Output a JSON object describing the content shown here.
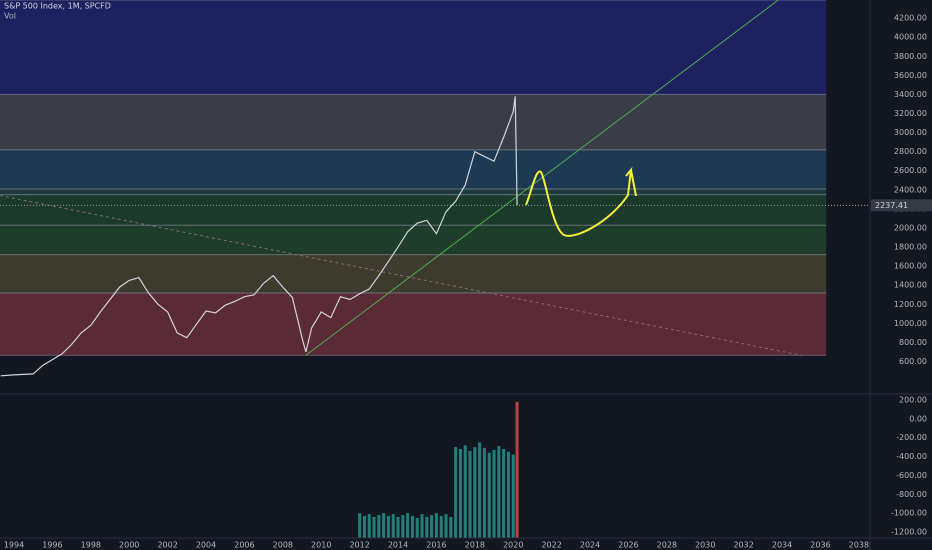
{
  "chart_data": [
    {
      "type": "line",
      "title": "S&P 500 Index, 1M, SPCFD",
      "xlim": [
        1993.27,
        2038.58
      ],
      "ylim": [
        270,
        4390
      ],
      "yticks": [
        {
          "value": 600,
          "label": "600.00"
        },
        {
          "value": 800,
          "label": "800.00"
        },
        {
          "value": 1000,
          "label": "1000.00"
        },
        {
          "value": 1200,
          "label": "1200.00"
        },
        {
          "value": 1400,
          "label": "1400.00"
        },
        {
          "value": 1600,
          "label": "1600.00"
        },
        {
          "value": 1800,
          "label": "1800.00"
        },
        {
          "value": 2000,
          "label": "2000.00"
        },
        {
          "value": 2200,
          "label": "2200.00"
        },
        {
          "value": 2400,
          "label": "2400.00"
        },
        {
          "value": 2600,
          "label": "2600.00"
        },
        {
          "value": 2800,
          "label": "2800.00"
        },
        {
          "value": 3000,
          "label": "3000.00"
        },
        {
          "value": 3200,
          "label": "3200.00"
        },
        {
          "value": 3400,
          "label": "3400.00"
        },
        {
          "value": 3600,
          "label": "3600.00"
        },
        {
          "value": 3800,
          "label": "3800.00"
        },
        {
          "value": 4000,
          "label": "4000.00"
        },
        {
          "value": 4200,
          "label": "4200.00"
        }
      ],
      "last_price": 2237.41,
      "bands_end_x": 2036.3,
      "bands": [
        {
          "from": 665,
          "to": 1320,
          "color": "#5a2a36"
        },
        {
          "from": 1320,
          "to": 1720,
          "color": "#3d3b2e"
        },
        {
          "from": 1720,
          "to": 2030,
          "color": "#1f3d2b"
        },
        {
          "from": 2030,
          "to": 2350,
          "color": "#1c3a2c"
        },
        {
          "from": 2350,
          "to": 2410,
          "color": "#1d3a3d"
        },
        {
          "from": 2410,
          "to": 2820,
          "color": "#1e3a52"
        },
        {
          "from": 2820,
          "to": 3400,
          "color": "#3a3d47"
        },
        {
          "from": 3400,
          "to": 4390,
          "color": "#1d2160"
        }
      ],
      "trendlines": [
        {
          "x": [
            2009.2,
            2033.8
          ],
          "y": [
            666,
            4390
          ],
          "color": "#4caf50",
          "dashed": false
        },
        {
          "x": [
            1993.27,
            2035.0
          ],
          "y": [
            2340,
            665
          ],
          "color": "#8a6a78",
          "dashed": true
        }
      ],
      "series": [
        {
          "name": "Vol",
          "color": "#d1d4dc",
          "x": [
            1993.3,
            1994,
            1995,
            1995.5,
            1996,
            1996.5,
            1997,
            1997.5,
            1998,
            1998.5,
            1999,
            1999.5,
            2000,
            2000.5,
            2001,
            2001.5,
            2002,
            2002.5,
            2003,
            2003.5,
            2004,
            2004.5,
            2005,
            2005.5,
            2006,
            2006.5,
            2007,
            2007.5,
            2008,
            2008.5,
            2009,
            2009.2,
            2009.5,
            2010,
            2010.5,
            2011,
            2011.5,
            2012,
            2012.5,
            2013,
            2013.5,
            2014,
            2014.5,
            2015,
            2015.5,
            2016,
            2016.5,
            2017,
            2017.5,
            2018,
            2018.5,
            2019,
            2019.5,
            2020,
            2020.1,
            2020.2
          ],
          "values": [
            450,
            460,
            470,
            560,
            620,
            680,
            780,
            900,
            980,
            1120,
            1250,
            1380,
            1450,
            1480,
            1320,
            1200,
            1120,
            900,
            850,
            990,
            1130,
            1110,
            1190,
            1230,
            1280,
            1300,
            1420,
            1500,
            1380,
            1270,
            850,
            700,
            950,
            1120,
            1060,
            1280,
            1250,
            1310,
            1360,
            1500,
            1650,
            1800,
            1960,
            2050,
            2080,
            1940,
            2170,
            2280,
            2450,
            2800,
            2750,
            2700,
            2950,
            3220,
            3380,
            2240
          ]
        }
      ]
    },
    {
      "type": "bar",
      "xlim": [
        1993.27,
        2038.58
      ],
      "ylim": [
        -1263,
        252
      ],
      "xticks": [
        1994,
        1996,
        1998,
        2000,
        2002,
        2004,
        2006,
        2008,
        2010,
        2012,
        2014,
        2016,
        2018,
        2020,
        2022,
        2024,
        2026,
        2028,
        2030,
        2032,
        2034,
        2036,
        2038
      ],
      "yticks": [
        {
          "value": 200,
          "label": "200.00"
        },
        {
          "value": 0,
          "label": "0.00"
        },
        {
          "value": -200,
          "label": "-200.00"
        },
        {
          "value": -400,
          "label": "-400.00"
        },
        {
          "value": -600,
          "label": "-600.00"
        },
        {
          "value": -800,
          "label": "-800.00"
        },
        {
          "value": -1000,
          "label": "-1000.00"
        },
        {
          "value": -1200,
          "label": "-1200.00"
        }
      ],
      "color": "#26a69a",
      "x": [
        2012,
        2012.25,
        2012.5,
        2012.75,
        2013,
        2013.25,
        2013.5,
        2013.75,
        2014,
        2014.25,
        2014.5,
        2014.75,
        2015,
        2015.25,
        2015.5,
        2015.75,
        2016,
        2016.25,
        2016.5,
        2016.75,
        2017,
        2017.25,
        2017.5,
        2017.75,
        2018,
        2018.25,
        2018.5,
        2018.75,
        2019,
        2019.25,
        2019.5,
        2019.75,
        2020,
        2020.2
      ],
      "values": [
        -1000,
        -1030,
        -1010,
        -1040,
        -1020,
        -1000,
        -1030,
        -1010,
        -1040,
        -1020,
        -1000,
        -1030,
        -1050,
        -1010,
        -1040,
        -1020,
        -1000,
        -1030,
        -1010,
        -1040,
        -300,
        -320,
        -280,
        -340,
        -300,
        -250,
        -310,
        -360,
        -330,
        -290,
        -320,
        -350,
        -380,
        180
      ]
    }
  ]
}
